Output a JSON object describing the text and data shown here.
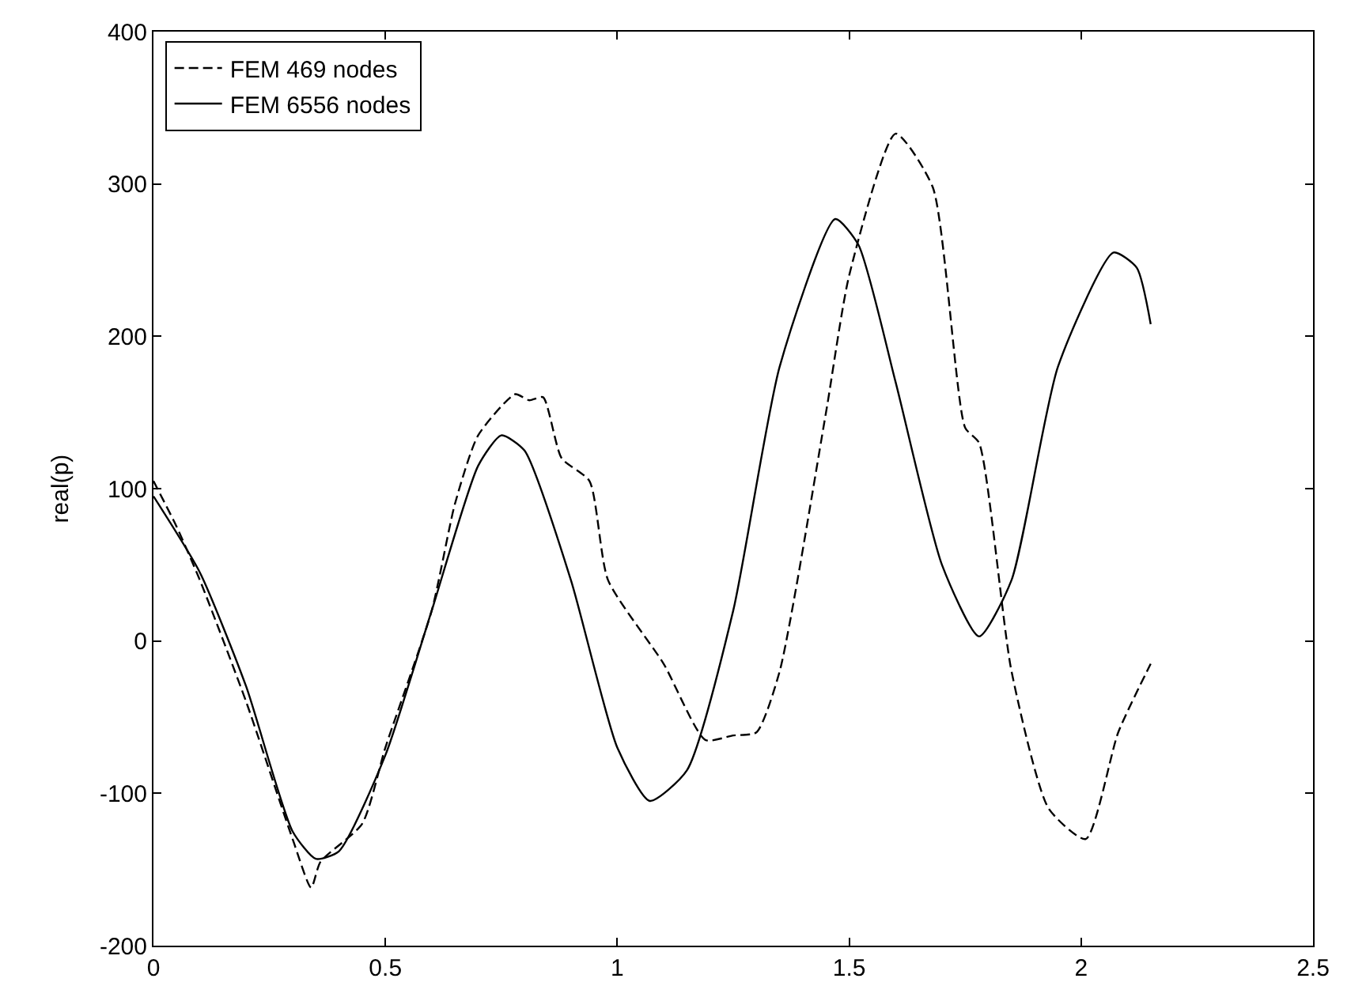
{
  "chart_data": {
    "type": "line",
    "ylabel": "real(p)",
    "xlim": [
      0,
      2.5
    ],
    "ylim": [
      -200,
      400
    ],
    "xticks": [
      0,
      0.5,
      1,
      1.5,
      2,
      2.5
    ],
    "yticks": [
      -200,
      -100,
      0,
      100,
      200,
      300,
      400
    ],
    "legend": "top left",
    "series": [
      {
        "name": "FEM 469 nodes",
        "color": "#000000",
        "line_style": "dashed",
        "x": [
          0,
          0.05,
          0.1,
          0.2,
          0.3,
          0.34,
          0.36,
          0.45,
          0.5,
          0.6,
          0.65,
          0.7,
          0.78,
          0.81,
          0.84,
          0.88,
          0.94,
          0.98,
          1.1,
          1.19,
          1.25,
          1.3,
          1.35,
          1.45,
          1.5,
          1.6,
          1.68,
          1.75,
          1.78,
          1.85,
          1.93,
          2.01,
          2.08,
          2.15
        ],
        "values": [
          105,
          75,
          40,
          -40,
          -130,
          -162,
          -145,
          -120,
          -70,
          20,
          90,
          135,
          162,
          158,
          160,
          120,
          105,
          40,
          -15,
          -65,
          -62,
          -60,
          -20,
          150,
          240,
          333,
          298,
          140,
          130,
          -20,
          -110,
          -130,
          -60,
          -15
        ]
      },
      {
        "name": "FEM 6556 nodes",
        "color": "#000000",
        "line_style": "solid",
        "x": [
          0,
          0.1,
          0.2,
          0.3,
          0.35,
          0.4,
          0.5,
          0.6,
          0.7,
          0.75,
          0.8,
          0.9,
          1.0,
          1.07,
          1.15,
          1.25,
          1.35,
          1.47,
          1.52,
          1.6,
          1.7,
          1.78,
          1.85,
          1.95,
          2.07,
          2.12,
          2.15
        ],
        "values": [
          95,
          45,
          -30,
          -125,
          -143,
          -138,
          -75,
          20,
          115,
          135,
          125,
          40,
          -70,
          -105,
          -85,
          20,
          180,
          277,
          260,
          170,
          50,
          3,
          40,
          180,
          255,
          245,
          208
        ]
      }
    ]
  }
}
